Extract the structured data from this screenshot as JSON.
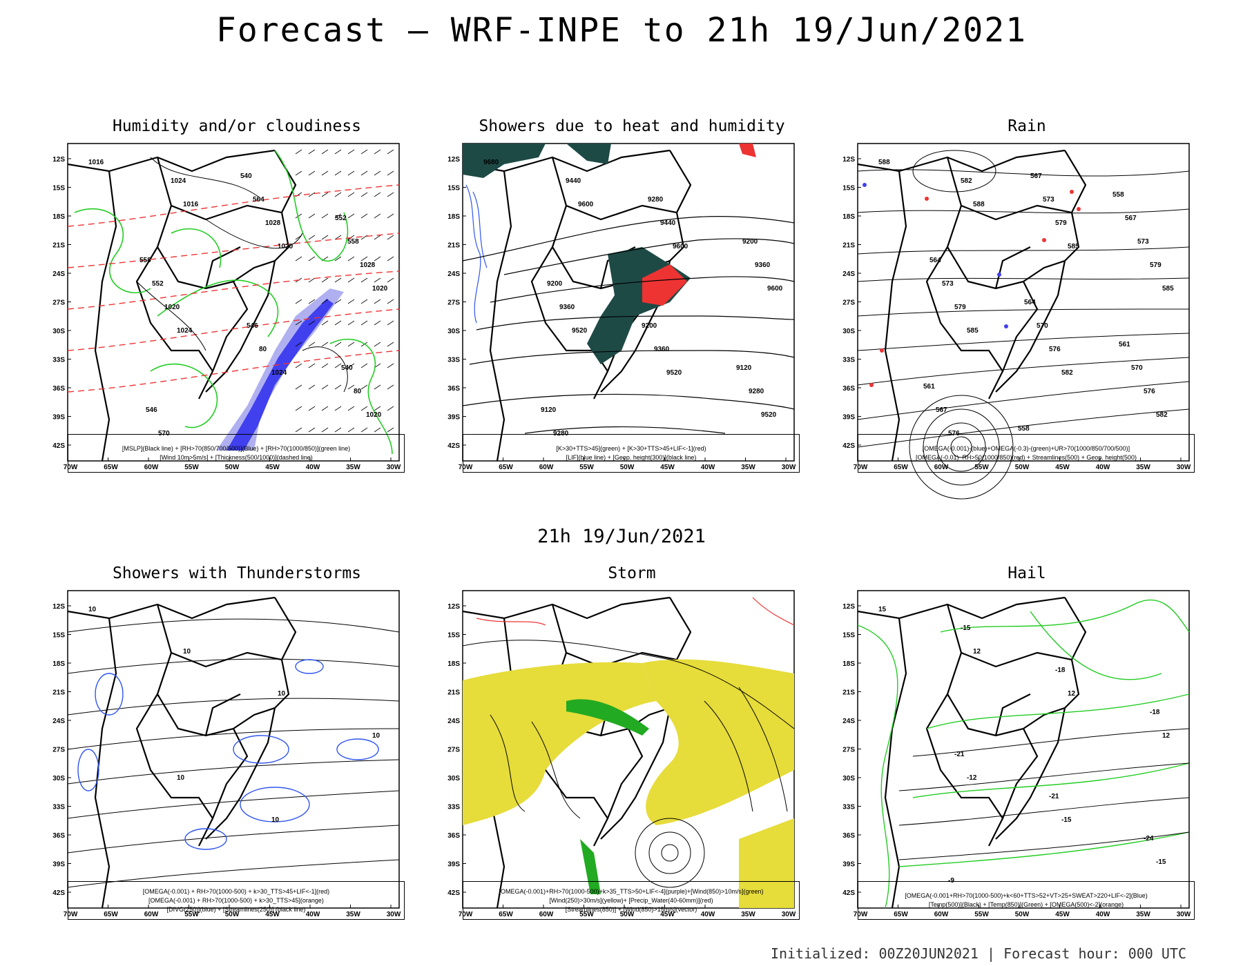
{
  "title": "Forecast — WRF-INPE to 21h 19/Jun/2021",
  "mid_title": "21h 19/Jun/2021",
  "footer": "Initialized: 00Z20JUN2021 | Forecast hour: 000 UTC",
  "axes": {
    "lat_labels": [
      "12S",
      "15S",
      "18S",
      "21S",
      "24S",
      "27S",
      "30S",
      "33S",
      "36S",
      "39S",
      "42S"
    ],
    "lon_labels": [
      "70W",
      "65W",
      "60W",
      "55W",
      "50W",
      "45W",
      "40W",
      "35W",
      "30W"
    ]
  },
  "colors": {
    "green_contour": "#22cc22",
    "blue_fill": "#4040ee",
    "lavender_fill": "#b0b0f0",
    "red_dashed": "#ee3333",
    "dark_teal": "#1e4a46",
    "yellow_fill": "#e6dc3a",
    "blue_contour": "#2f54ee"
  },
  "panels": [
    {
      "title": "Humidity and/or cloudiness",
      "legend": [
        "[MSLP](Black line) + [RH>70(850/700/500)](Blue) + [RH>70(1000/850)](green line)",
        "[Wind 10m>5m/s] + [Thickness(500/1000)](dashed line)"
      ],
      "labels": [
        "1016",
        "1016",
        "1020",
        "1020",
        "1024",
        "1024",
        "1020",
        "1024",
        "1028",
        "1028",
        "1020",
        "80",
        "80",
        "570",
        "564",
        "558",
        "552",
        "546",
        "540",
        "546",
        "540",
        "552",
        "558"
      ]
    },
    {
      "title": "Showers due to heat and humidity",
      "legend": [
        "[K>30+TTS>45](green) + [K>30+TTS>45+LIF<-1](red)",
        "[LIF](blue line) + [Geop. height(300)](black line)"
      ],
      "labels": [
        "9680",
        "9600",
        "9600",
        "9600",
        "9520",
        "9520",
        "9520",
        "9440",
        "9440",
        "9360",
        "9360",
        "9360",
        "9280",
        "9280",
        "9280",
        "9200",
        "9200",
        "9200",
        "9120",
        "9120"
      ]
    },
    {
      "title": "Rain",
      "legend": [
        "[OMEGA(-0.001)-(blue)+OMEGA(-0.3)-(green)+UR>70(1000/850/700/500)]",
        "[OMEGA(-0.01)_RH>50(1000/850)(red) + Streamlines(500) + Geop. height(500)"
      ],
      "labels": [
        "588",
        "588",
        "585",
        "585",
        "585",
        "582",
        "582",
        "582",
        "579",
        "579",
        "579",
        "576",
        "576",
        "576",
        "573",
        "573",
        "573",
        "570",
        "570",
        "567",
        "567",
        "567",
        "564",
        "564",
        "561",
        "561",
        "558",
        "558"
      ]
    },
    {
      "title": "Showers with Thunderstorms",
      "legend": [
        "[OMEGA(-0.001) + RH>70(1000-500) + k>30_TTS>45+LIF<-1](red)",
        "[OMEGA(-0.001) + RH>70(1000-500) + k>30_TTS>45](orange)",
        "[DIVG(250)](blue) + [Streamlines(250)] (black line)"
      ],
      "labels": [
        "10",
        "10",
        "10",
        "10",
        "10",
        "10"
      ]
    },
    {
      "title": "Storm",
      "legend": [
        "[OMEGA(-0.001)+RH>70(1000-500)+k>35_TTS>50+LIF<-4](purple)+[Wind(850)>10m/s](green)",
        "[Wind(250)>30m/s](yellow)+ [Precip_Water(40-60mm)](red)",
        "[Streamlines(850)] + [Wind(850)>15m/s](vector)"
      ],
      "labels": []
    },
    {
      "title": "Hail",
      "legend": [
        "[OMEGA(-0.001+RH>70(1000-500)+k<60+TTS>52+VT>25+SWEAT>220+LIF<-2](Blue)",
        "[Temp(500)](Black) + [Temp(850)](Green) + [OMEGA(500)<-2](orange)"
      ],
      "labels": [
        "15",
        "12",
        "12",
        "12",
        "-12",
        "-15",
        "-15",
        "-15",
        "-18",
        "-18",
        "-21",
        "-21",
        "-24",
        "-9"
      ]
    }
  ]
}
